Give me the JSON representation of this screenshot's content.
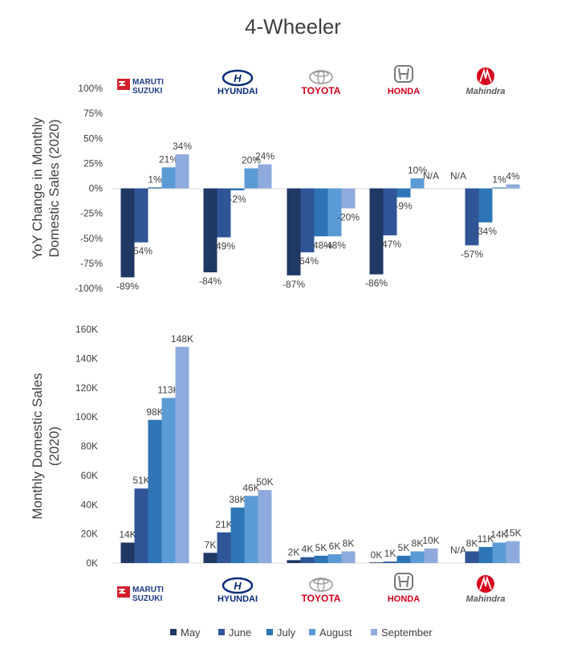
{
  "title": "4-Wheeler",
  "brands": [
    {
      "name": "Maruti Suzuki",
      "logo_line1": "MARUTI",
      "logo_line2": "SUZUKI",
      "logo_color": "#1f3a8a",
      "mark_color": "#d2202f"
    },
    {
      "name": "Hyundai",
      "logo_line1": "HYUNDAI",
      "logo_color": "#0a2b7a"
    },
    {
      "name": "Toyota",
      "logo_line1": "TOYOTA",
      "logo_color": "#d6001c"
    },
    {
      "name": "Honda",
      "logo_line1": "HONDA",
      "logo_color": "#d6001c"
    },
    {
      "name": "Mahindra",
      "logo_line1": "Mahindra",
      "logo_color": "#d6001c"
    }
  ],
  "legend_position": "bottom",
  "chart_data": [
    {
      "type": "bar",
      "ylabel": "YoY Change in Monthly Domestic Sales (2020)",
      "ylim": [
        -100,
        100
      ],
      "yticks": [
        "100%",
        "75%",
        "50%",
        "25%",
        "0%",
        "-25%",
        "-50%",
        "-75%",
        "-100%"
      ],
      "categories": [
        "Maruti Suzuki",
        "Hyundai",
        "Toyota",
        "Honda",
        "Mahindra"
      ],
      "series": [
        {
          "name": "May",
          "color": "#1f3864",
          "values": [
            -89,
            -84,
            -87,
            -86,
            null
          ],
          "labels": [
            "-89%",
            "-84%",
            "-87%",
            "-86%",
            "N/A"
          ]
        },
        {
          "name": "June",
          "color": "#2f5597",
          "values": [
            -54,
            -49,
            -64,
            -47,
            -57
          ],
          "labels": [
            "-54%",
            "-49%",
            "-64%",
            "-47%",
            "-57%"
          ]
        },
        {
          "name": "July",
          "color": "#2e75b6",
          "values": [
            1,
            -2,
            -48,
            -9,
            -34
          ],
          "labels": [
            "1%",
            "-2%",
            "-48%",
            "-9%",
            "-34%"
          ]
        },
        {
          "name": "August",
          "color": "#5b9bd5",
          "values": [
            21,
            20,
            -48,
            10,
            1
          ],
          "labels": [
            "21%",
            "20%",
            "-48%",
            "10%",
            "1%"
          ]
        },
        {
          "name": "September",
          "color": "#8faadc",
          "values": [
            34,
            24,
            -20,
            null,
            4
          ],
          "labels": [
            "34%",
            "24%",
            "-20%",
            "N/A",
            "4%"
          ]
        }
      ]
    },
    {
      "type": "bar",
      "ylabel": "Monthly Domestic Sales (2020)",
      "ylim": [
        0,
        160000
      ],
      "yticks": [
        "160K",
        "140K",
        "120K",
        "100K",
        "80K",
        "60K",
        "40K",
        "20K",
        "0K"
      ],
      "categories": [
        "Maruti Suzuki",
        "Hyundai",
        "Toyota",
        "Honda",
        "Mahindra"
      ],
      "series": [
        {
          "name": "May",
          "color": "#1f3864",
          "values": [
            14000,
            7000,
            2000,
            0,
            null
          ],
          "labels": [
            "14K",
            "7K",
            "2K",
            "0K",
            "N/A"
          ]
        },
        {
          "name": "June",
          "color": "#2f5597",
          "values": [
            51000,
            21000,
            4000,
            1000,
            8000
          ],
          "labels": [
            "51K",
            "21K",
            "4K",
            "1K",
            "8K"
          ]
        },
        {
          "name": "July",
          "color": "#2e75b6",
          "values": [
            98000,
            38000,
            5000,
            5000,
            11000
          ],
          "labels": [
            "98K",
            "38K",
            "5K",
            "5K",
            "11K"
          ]
        },
        {
          "name": "August",
          "color": "#5b9bd5",
          "values": [
            113000,
            46000,
            6000,
            8000,
            14000
          ],
          "labels": [
            "113K",
            "46K",
            "6K",
            "8K",
            "14K"
          ]
        },
        {
          "name": "September",
          "color": "#8faadc",
          "values": [
            148000,
            50000,
            8000,
            10000,
            15000
          ],
          "labels": [
            "148K",
            "50K",
            "8K",
            "10K",
            "15K"
          ]
        }
      ]
    }
  ]
}
